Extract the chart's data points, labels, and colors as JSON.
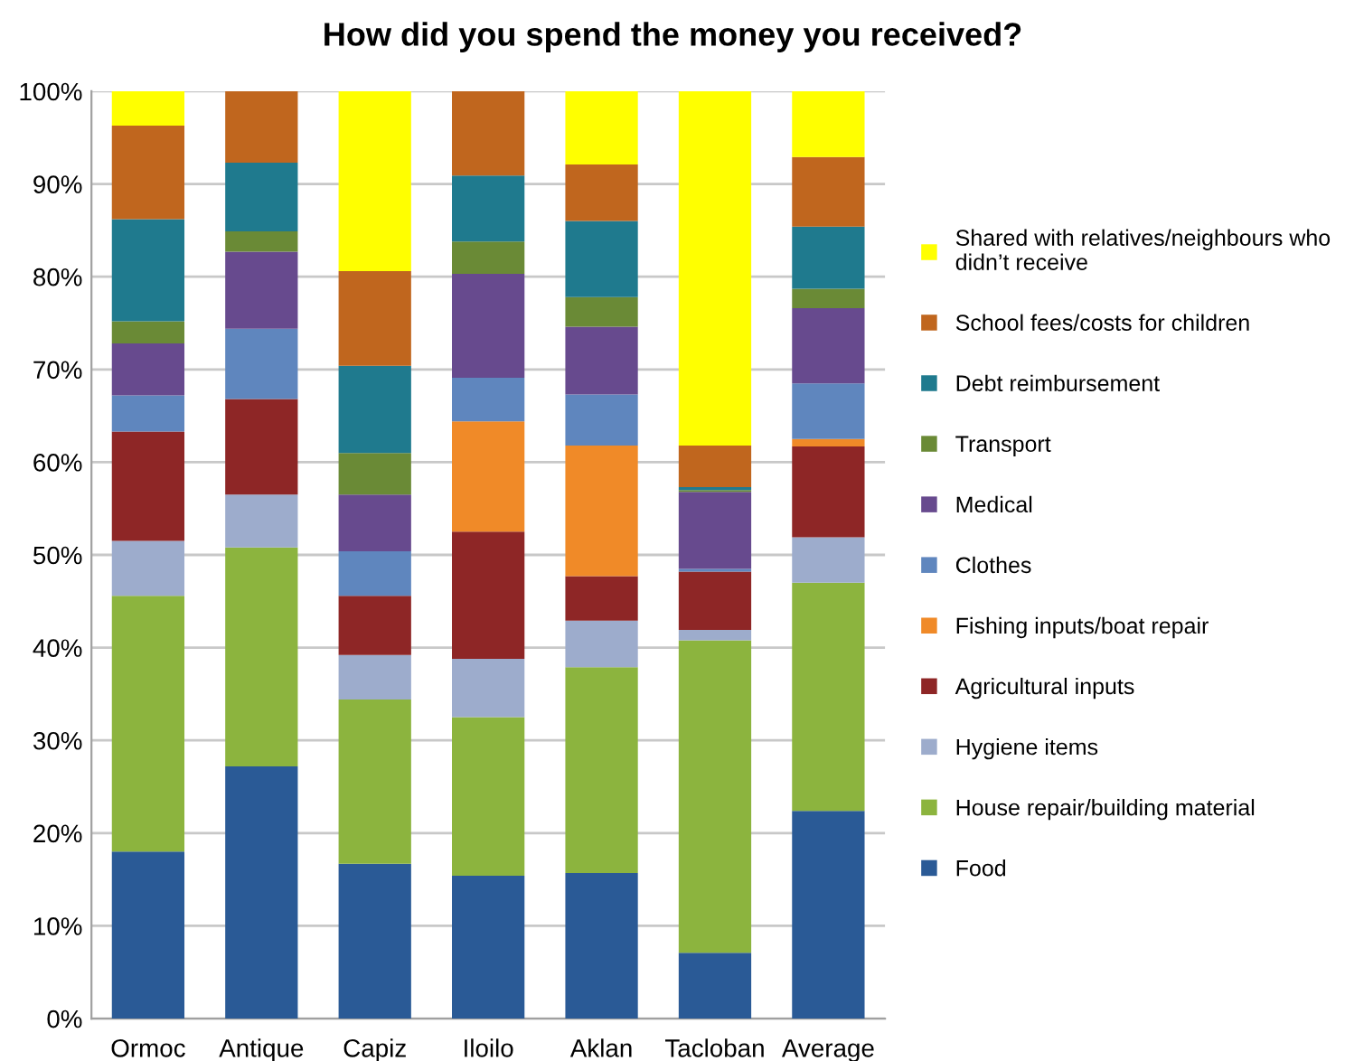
{
  "chart_data": {
    "type": "bar",
    "stacked": true,
    "title": "How did you spend the money you received?",
    "categories": [
      "Ormoc",
      "Antique",
      "Capiz",
      "Iloilo",
      "Aklan",
      "Tacloban",
      "Average"
    ],
    "series": [
      {
        "name": "Food",
        "color": "#2a5a96",
        "values": [
          18,
          27.2,
          16.7,
          15.4,
          15.7,
          7.1,
          22.4
        ]
      },
      {
        "name": "House repair/building material",
        "color": "#8cb43e",
        "values": [
          27.6,
          23.6,
          17.7,
          17.1,
          22.2,
          33.7,
          24.6
        ]
      },
      {
        "name": "Hygiene items",
        "color": "#9daccc",
        "values": [
          5.9,
          5.7,
          4.8,
          6.3,
          5.0,
          1.1,
          4.9
        ]
      },
      {
        "name": "Agricultural inputs",
        "color": "#8e2626",
        "values": [
          11.8,
          10.3,
          6.4,
          13.7,
          4.8,
          6.3,
          9.8
        ]
      },
      {
        "name": "Fishing inputs/boat repair",
        "color": "#f08a28",
        "values": [
          0,
          0,
          0,
          11.9,
          14.1,
          0,
          0.8
        ]
      },
      {
        "name": "Clothes",
        "color": "#5f86be",
        "values": [
          3.9,
          7.6,
          4.8,
          4.7,
          5.5,
          0.3,
          6.0
        ]
      },
      {
        "name": "Medical",
        "color": "#674a8e",
        "values": [
          5.6,
          8.3,
          6.1,
          11.2,
          7.3,
          8.3,
          8.1
        ]
      },
      {
        "name": "Transport",
        "color": "#6a8a36",
        "values": [
          2.4,
          2.2,
          4.5,
          3.5,
          3.2,
          0.2,
          2.1
        ]
      },
      {
        "name": "Debt reimbursement",
        "color": "#1f7a8e",
        "values": [
          11,
          7.4,
          9.4,
          7.1,
          8.2,
          0.3,
          6.7
        ]
      },
      {
        "name": "School fees/costs for children",
        "color": "#c0661e",
        "values": [
          10.1,
          7.7,
          10.2,
          9.1,
          6.1,
          4.5,
          7.5
        ]
      },
      {
        "name": "Shared with relatives/neighbours who didn’t receive",
        "color": "#ffff00",
        "values": [
          3.7,
          0,
          19.4,
          0,
          7.9,
          38.2,
          7.1
        ]
      }
    ],
    "ylim": [
      0,
      100
    ],
    "yticks": [
      {
        "value": 0,
        "label": "0%"
      },
      {
        "value": 10,
        "label": "10%"
      },
      {
        "value": 20,
        "label": "20%"
      },
      {
        "value": 30,
        "label": "30%"
      },
      {
        "value": 40,
        "label": "40%"
      },
      {
        "value": 50,
        "label": "50%"
      },
      {
        "value": 60,
        "label": "60%"
      },
      {
        "value": 70,
        "label": "70%"
      },
      {
        "value": 80,
        "label": "80%"
      },
      {
        "value": 90,
        "label": "90%"
      },
      {
        "value": 100,
        "label": "100%"
      }
    ],
    "grid": "y",
    "legend": "right"
  }
}
